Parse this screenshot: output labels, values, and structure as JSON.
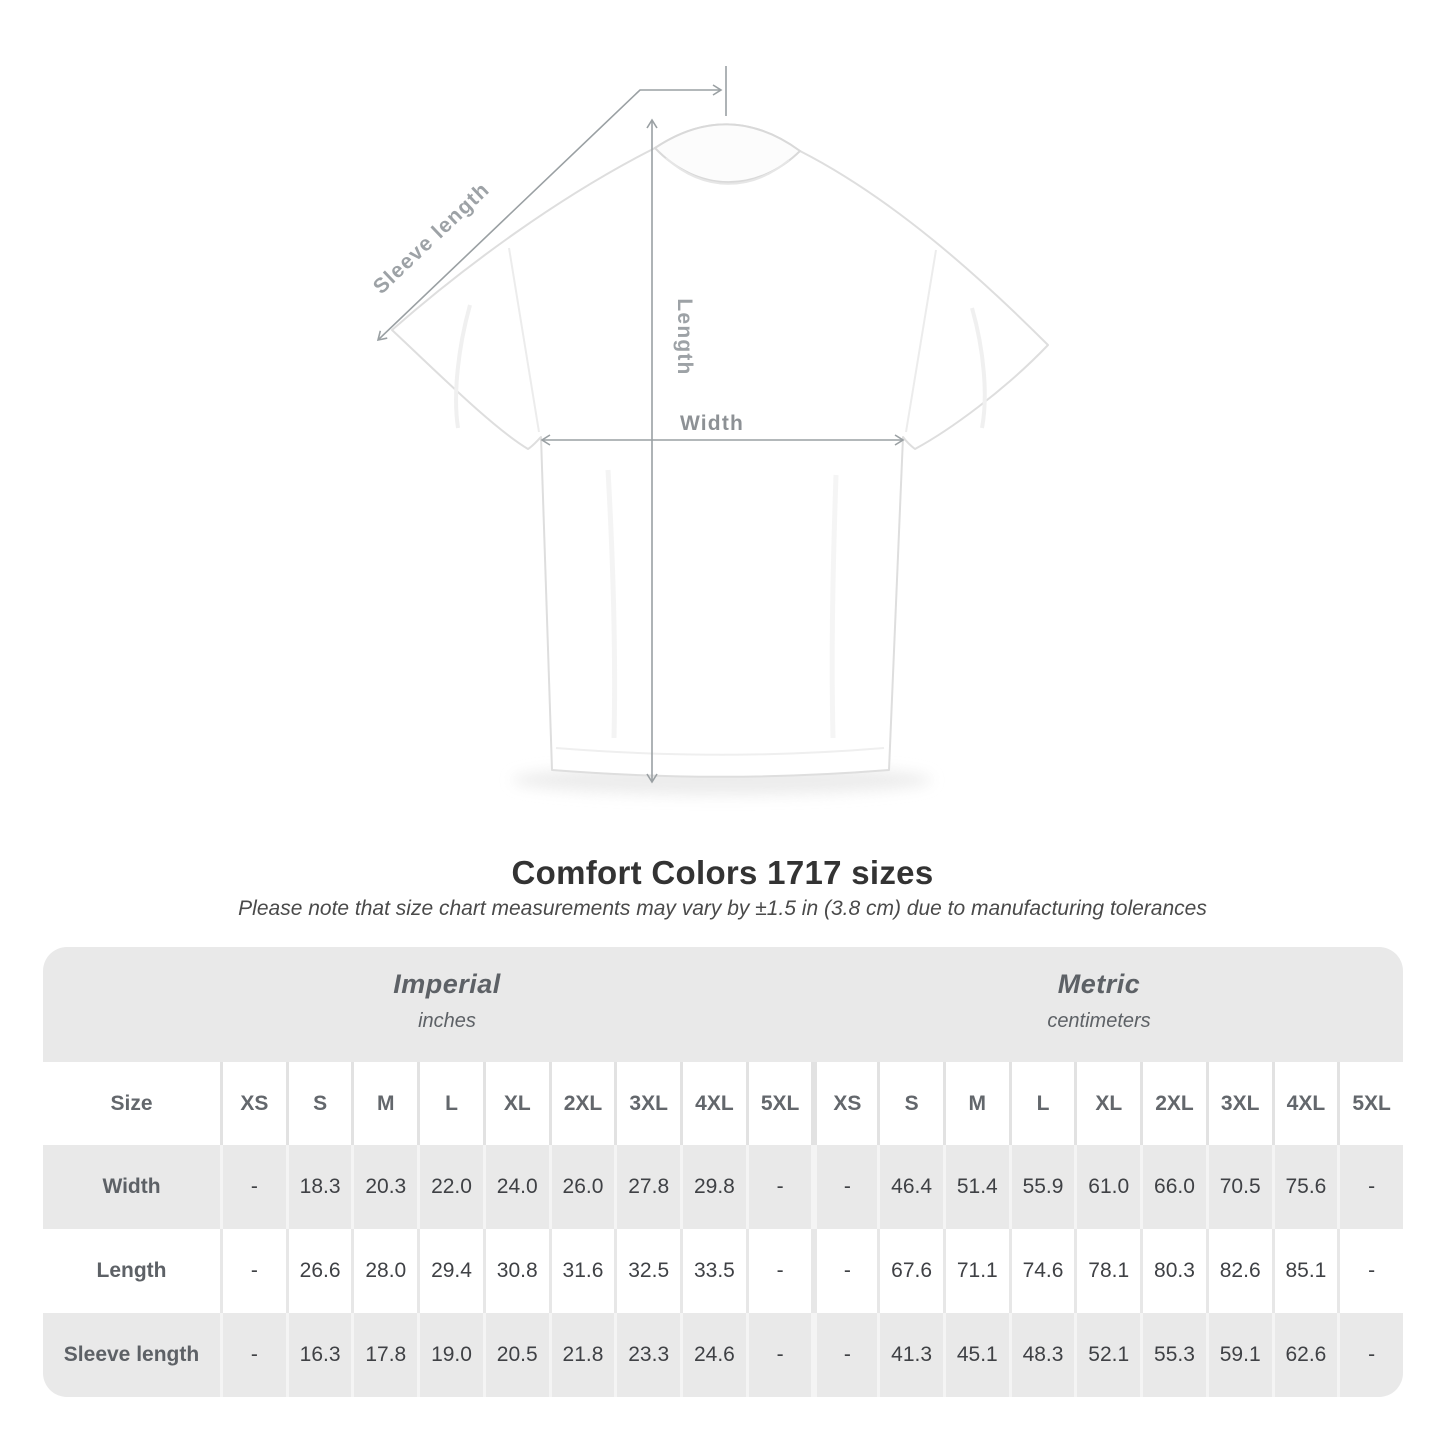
{
  "figure": {
    "sleeve_length_label": "Sleeve length",
    "length_label": "Length",
    "width_label": "Width"
  },
  "chart_data": {
    "type": "table",
    "title": "Comfort Colors 1717 sizes",
    "subtitle": "Please note that size chart measurements may vary by ±1.5 in (3.8 cm) due to manufacturing tolerances",
    "sections": [
      {
        "label": "Imperial",
        "unit": "inches"
      },
      {
        "label": "Metric",
        "unit": "centimeters"
      }
    ],
    "size_column_header": "Size",
    "sizes": [
      "XS",
      "S",
      "M",
      "L",
      "XL",
      "2XL",
      "3XL",
      "4XL",
      "5XL"
    ],
    "rows": [
      {
        "label": "Width",
        "imperial": [
          "-",
          "18.3",
          "20.3",
          "22.0",
          "24.0",
          "26.0",
          "27.8",
          "29.8",
          "-"
        ],
        "metric": [
          "-",
          "46.4",
          "51.4",
          "55.9",
          "61.0",
          "66.0",
          "70.5",
          "75.6",
          "-"
        ]
      },
      {
        "label": "Length",
        "imperial": [
          "-",
          "26.6",
          "28.0",
          "29.4",
          "30.8",
          "31.6",
          "32.5",
          "33.5",
          "-"
        ],
        "metric": [
          "-",
          "67.6",
          "71.1",
          "74.6",
          "78.1",
          "80.3",
          "82.6",
          "85.1",
          "-"
        ]
      },
      {
        "label": "Sleeve length",
        "imperial": [
          "-",
          "16.3",
          "17.8",
          "19.0",
          "20.5",
          "21.8",
          "23.3",
          "24.6",
          "-"
        ],
        "metric": [
          "-",
          "41.3",
          "45.1",
          "48.3",
          "52.1",
          "55.3",
          "59.1",
          "62.6",
          "-"
        ]
      }
    ],
    "layout": {
      "row_stripe_colors": [
        "#e9e9e9",
        "#ffffff"
      ],
      "header_band_color": "#e9e9e9",
      "dimension_line_color": "#9aa0a3",
      "title_color": "#333333",
      "value_text_color": "#3f4145",
      "header_text_color": "#5d6166"
    }
  }
}
